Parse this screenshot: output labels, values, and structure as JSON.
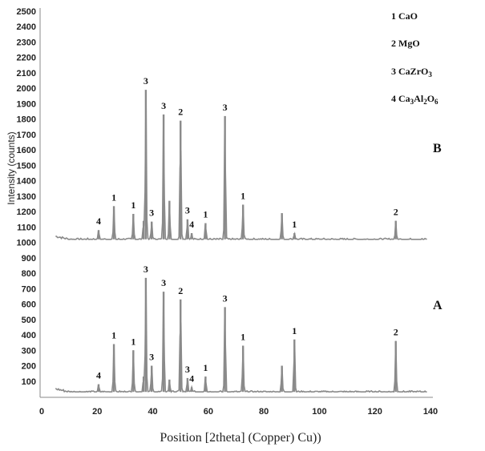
{
  "chart_data": {
    "type": "line",
    "xlabel": "Position [2theta] (Copper) Cu))",
    "ylabel": "Intensity (counts)",
    "xlim": [
      0,
      140
    ],
    "ylim": [
      0,
      2500
    ],
    "x_ticks": [
      0,
      20,
      40,
      60,
      80,
      100,
      120,
      140
    ],
    "y_ticks": [
      100,
      200,
      300,
      400,
      500,
      600,
      700,
      800,
      900,
      1000,
      1100,
      1200,
      1300,
      1400,
      1500,
      1600,
      1700,
      1800,
      1900,
      2000,
      2100,
      2200,
      2300,
      2400,
      2500
    ],
    "legend": [
      "1 CaO",
      "2 MgO",
      "3 CaZrO3",
      "4 Ca3Al2O6"
    ],
    "legend_position": "top-right",
    "grid": false,
    "series": [
      {
        "name": "B",
        "baseline": 1020,
        "peaks": [
          {
            "x": 20.5,
            "y": 1080,
            "label": "4"
          },
          {
            "x": 26,
            "y": 1235,
            "label": "1"
          },
          {
            "x": 33,
            "y": 1185,
            "label": "1"
          },
          {
            "x": 36.7,
            "y": 1140,
            "label": ""
          },
          {
            "x": 37.5,
            "y": 1990,
            "label": "3"
          },
          {
            "x": 39.6,
            "y": 1135,
            "label": "3"
          },
          {
            "x": 43.9,
            "y": 1830,
            "label": "3"
          },
          {
            "x": 46,
            "y": 1270,
            "label": ""
          },
          {
            "x": 50,
            "y": 1790,
            "label": "2"
          },
          {
            "x": 52.5,
            "y": 1150,
            "label": "3"
          },
          {
            "x": 54,
            "y": 1060,
            "label": "4"
          },
          {
            "x": 59,
            "y": 1125,
            "label": "1"
          },
          {
            "x": 66,
            "y": 1820,
            "label": "3"
          },
          {
            "x": 72.5,
            "y": 1245,
            "label": "1"
          },
          {
            "x": 86.5,
            "y": 1190,
            "label": ""
          },
          {
            "x": 91,
            "y": 1060,
            "label": "1"
          },
          {
            "x": 127.5,
            "y": 1140,
            "label": "2"
          }
        ]
      },
      {
        "name": "A",
        "baseline": 30,
        "peaks": [
          {
            "x": 20.5,
            "y": 80,
            "label": "4"
          },
          {
            "x": 26,
            "y": 340,
            "label": "1"
          },
          {
            "x": 33,
            "y": 300,
            "label": "1"
          },
          {
            "x": 36.7,
            "y": 130,
            "label": ""
          },
          {
            "x": 37.5,
            "y": 770,
            "label": "3"
          },
          {
            "x": 39.6,
            "y": 200,
            "label": "3"
          },
          {
            "x": 43.9,
            "y": 680,
            "label": "3"
          },
          {
            "x": 46,
            "y": 110,
            "label": ""
          },
          {
            "x": 50,
            "y": 630,
            "label": "2"
          },
          {
            "x": 52.5,
            "y": 120,
            "label": "3"
          },
          {
            "x": 54,
            "y": 60,
            "label": "4"
          },
          {
            "x": 59,
            "y": 130,
            "label": "1"
          },
          {
            "x": 66,
            "y": 580,
            "label": "3"
          },
          {
            "x": 72.5,
            "y": 330,
            "label": "1"
          },
          {
            "x": 86.5,
            "y": 200,
            "label": ""
          },
          {
            "x": 91,
            "y": 370,
            "label": "1"
          },
          {
            "x": 127.5,
            "y": 360,
            "label": "2"
          }
        ]
      }
    ]
  },
  "colors": {
    "trace": "#8a8a8a",
    "axis": "#888888",
    "text": "#222222"
  }
}
